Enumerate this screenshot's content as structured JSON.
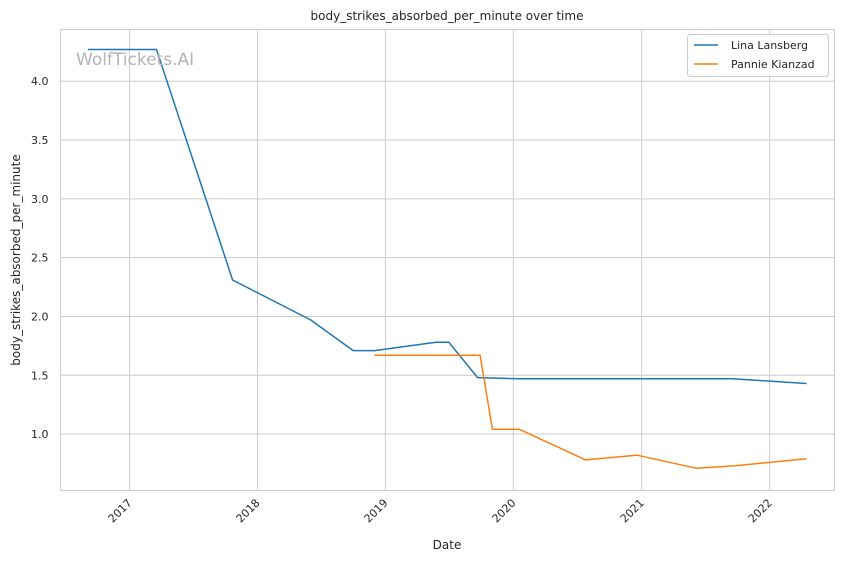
{
  "chart_data": {
    "type": "line",
    "title": "body_strikes_absorbed_per_minute over time",
    "xlabel": "Date",
    "ylabel": "body_strikes_absorbed_per_minute",
    "watermark": "WolfTickets.AI",
    "x_ticks": [
      "2017",
      "2018",
      "2019",
      "2020",
      "2021",
      "2022"
    ],
    "y_ticks": [
      "1.0",
      "1.5",
      "2.0",
      "2.5",
      "3.0",
      "3.5",
      "4.0"
    ],
    "xlim": [
      "2016-06-18",
      "2022-07-05"
    ],
    "ylim": [
      0.52,
      4.44
    ],
    "grid": true,
    "legend_position": "top-right",
    "series": [
      {
        "name": "Lina Lansberg",
        "color": "#1f77b4",
        "x": [
          "2016-09-04",
          "2017-03-19",
          "2017-10-22",
          "2018-06-02",
          "2018-10-01",
          "2018-12-01",
          "2019-05-25",
          "2019-07-01",
          "2019-09-21",
          "2020-01-18",
          "2020-08-01",
          "2021-01-01",
          "2021-09-18",
          "2022-04-16"
        ],
        "y": [
          4.27,
          4.27,
          2.31,
          1.97,
          1.71,
          1.71,
          1.78,
          1.78,
          1.48,
          1.47,
          1.47,
          1.47,
          1.47,
          1.43
        ]
      },
      {
        "name": "Pannie Kianzad",
        "color": "#ff7f0e",
        "x": [
          "2018-11-30",
          "2019-09-28",
          "2019-11-02",
          "2020-01-18",
          "2020-07-25",
          "2020-12-19",
          "2021-06-05",
          "2021-09-25",
          "2022-04-16"
        ],
        "y": [
          1.67,
          1.67,
          1.04,
          1.04,
          0.78,
          0.82,
          0.71,
          0.73,
          0.79
        ]
      }
    ]
  }
}
